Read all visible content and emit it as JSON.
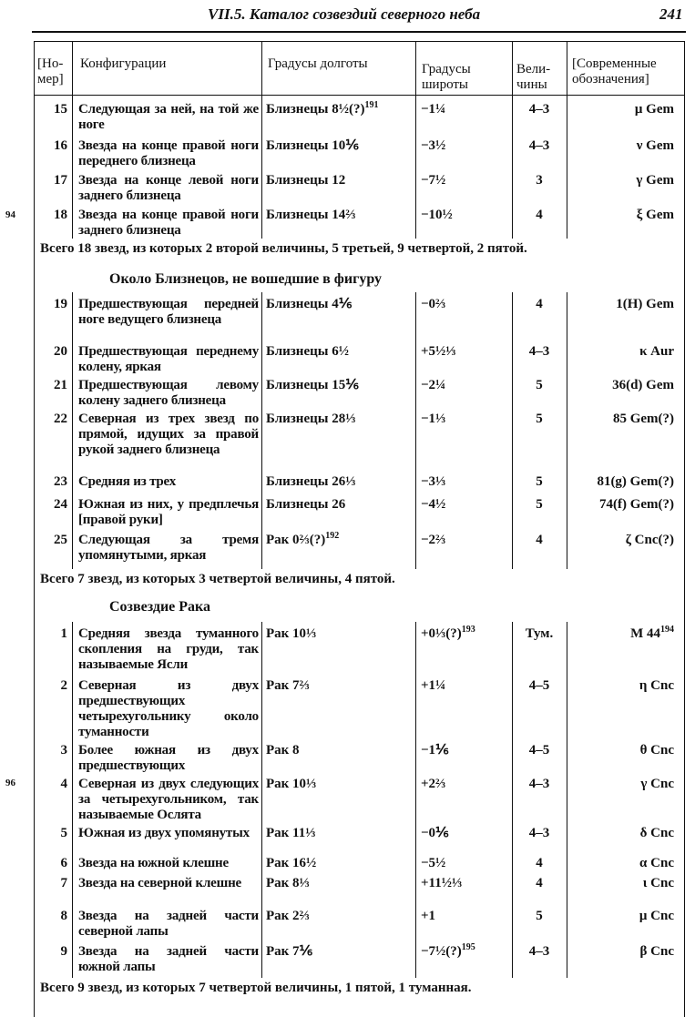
{
  "header": {
    "title": "VII.5. Каталог созвездий северного неба",
    "page_number": "241"
  },
  "margin_numbers": [
    "94",
    "96"
  ],
  "columns": [
    "[Но-мер]",
    "Конфигурации",
    "Градусы долготы",
    "Градусы широты",
    "Вели-чины",
    "[Современные обозначения]"
  ],
  "sections": [
    {
      "title": "",
      "rows": [
        {
          "num": "15",
          "cfg": "Следующая за ней, на той же ноге",
          "long": "Близнецы 8½(?)",
          "long_sup": "191",
          "lat": "−1¼",
          "lat_sup": "",
          "mag": "4–3",
          "des": "μ Gem",
          "des_sup": ""
        },
        {
          "num": "16",
          "cfg": "Звезда на конце правой ноги переднего близнеца",
          "long": "Близнецы 10⅙",
          "long_sup": "",
          "lat": "−3½",
          "lat_sup": "",
          "mag": "4–3",
          "des": "ν Gem",
          "des_sup": ""
        },
        {
          "num": "17",
          "cfg": "Звезда на конце левой ноги заднего близнеца",
          "long": "Близнецы 12",
          "long_sup": "",
          "lat": "−7½",
          "lat_sup": "",
          "mag": "3",
          "des": "γ Gem",
          "des_sup": ""
        },
        {
          "num": "18",
          "cfg": "Звезда на конце правой ноги заднего близнеца",
          "long": "Близнецы 14⅔",
          "long_sup": "",
          "lat": "−10½",
          "lat_sup": "",
          "mag": "4",
          "des": "ξ Gem",
          "des_sup": ""
        }
      ],
      "summary": "Всего 18 звезд, из которых 2 второй величины, 5 третьей, 9 четвертой, 2 пятой."
    },
    {
      "title": "Около Близнецов, не вошедшие в фигуру",
      "rows": [
        {
          "num": "19",
          "cfg": "Предшествующая передней ноге ведущего близнеца",
          "long": "Близнецы 4⅙",
          "long_sup": "",
          "lat": "−0⅔",
          "lat_sup": "",
          "mag": "4",
          "des": "1(H) Gem",
          "des_sup": ""
        },
        {
          "num": "20",
          "cfg": "Предшествующая переднему колену, яркая",
          "long": "Близнецы 6½",
          "long_sup": "",
          "lat": "+5½⅓",
          "lat_sup": "",
          "mag": "4–3",
          "des": "κ Aur",
          "des_sup": ""
        },
        {
          "num": "21",
          "cfg": "Предшествующая левому колену заднего близнеца",
          "long": "Близнецы 15⅙",
          "long_sup": "",
          "lat": "−2¼",
          "lat_sup": "",
          "mag": "5",
          "des": "36(d) Gem",
          "des_sup": ""
        },
        {
          "num": "22",
          "cfg": "Северная из трех звезд по прямой, идущих за правой рукой заднего близнеца",
          "long": "Близнецы 28⅓",
          "long_sup": "",
          "lat": "−1⅓",
          "lat_sup": "",
          "mag": "5",
          "des": "85 Gem(?)",
          "des_sup": ""
        },
        {
          "num": "23",
          "cfg": "Средняя из трех",
          "long": "Близнецы 26⅓",
          "long_sup": "",
          "lat": "−3⅓",
          "lat_sup": "",
          "mag": "5",
          "des": "81(g) Gem(?)",
          "des_sup": ""
        },
        {
          "num": "24",
          "cfg": "Южная из них, у предплечья [правой руки]",
          "long": "Близнецы 26",
          "long_sup": "",
          "lat": "−4½",
          "lat_sup": "",
          "mag": "5",
          "des": "74(f) Gem(?)",
          "des_sup": ""
        },
        {
          "num": "25",
          "cfg": "Следующая за тремя упомянутыми, яркая",
          "long": "Рак 0⅔(?)",
          "long_sup": "192",
          "lat": "−2⅔",
          "lat_sup": "",
          "mag": "4",
          "des": "ζ Cnc(?)",
          "des_sup": ""
        }
      ],
      "summary": "Всего 7 звезд, из которых 3 четвертой величины, 4 пятой."
    },
    {
      "title": "Созвездие Рака",
      "rows": [
        {
          "num": "1",
          "cfg": "Средняя звезда туманного скопления на груди, так называемые Ясли",
          "long": "Рак 10⅓",
          "long_sup": "",
          "lat": "+0⅓(?)",
          "lat_sup": "193",
          "mag": "Тум.",
          "des": "M 44",
          "des_sup": "194"
        },
        {
          "num": "2",
          "cfg": "Северная из двух предшествующих четырехугольнику около туманности",
          "long": "Рак 7⅔",
          "long_sup": "",
          "lat": "+1¼",
          "lat_sup": "",
          "mag": "4–5",
          "des": "η Cnc",
          "des_sup": ""
        },
        {
          "num": "3",
          "cfg": "Более южная из двух предшествующих",
          "long": "Рак 8",
          "long_sup": "",
          "lat": "−1⅙",
          "lat_sup": "",
          "mag": "4–5",
          "des": "θ Cnc",
          "des_sup": ""
        },
        {
          "num": "4",
          "cfg": "Северная из двух следующих за четырехугольником, так называемые Ослята",
          "long": "Рак 10⅓",
          "long_sup": "",
          "lat": "+2⅔",
          "lat_sup": "",
          "mag": "4–3",
          "des": "γ Cnc",
          "des_sup": ""
        },
        {
          "num": "5",
          "cfg": "Южная из двух упомянутых",
          "long": "Рак 11⅓",
          "long_sup": "",
          "lat": "−0⅙",
          "lat_sup": "",
          "mag": "4–3",
          "des": "δ Cnc",
          "des_sup": ""
        },
        {
          "num": "6",
          "cfg": "Звезда на южной клешне",
          "long": "Рак 16½",
          "long_sup": "",
          "lat": "−5½",
          "lat_sup": "",
          "mag": "4",
          "des": "α Cnc",
          "des_sup": ""
        },
        {
          "num": "7",
          "cfg": "Звезда на северной клешне",
          "long": "Рак 8⅓",
          "long_sup": "",
          "lat": "+11½⅓",
          "lat_sup": "",
          "mag": "4",
          "des": "ι Cnc",
          "des_sup": ""
        },
        {
          "num": "8",
          "cfg": "Звезда на задней части северной лапы",
          "long": "Рак 2⅔",
          "long_sup": "",
          "lat": "+1",
          "lat_sup": "",
          "mag": "5",
          "des": "μ Cnc",
          "des_sup": ""
        },
        {
          "num": "9",
          "cfg": "Звезда на задней части южной лапы",
          "long": "Рак 7⅙",
          "long_sup": "",
          "lat": "−7½(?)",
          "lat_sup": "195",
          "mag": "4–3",
          "des": "β Cnc",
          "des_sup": ""
        }
      ],
      "summary": "Всего 9 звезд, из которых 7 четвертой величины, 1 пятой, 1 туманная."
    }
  ]
}
